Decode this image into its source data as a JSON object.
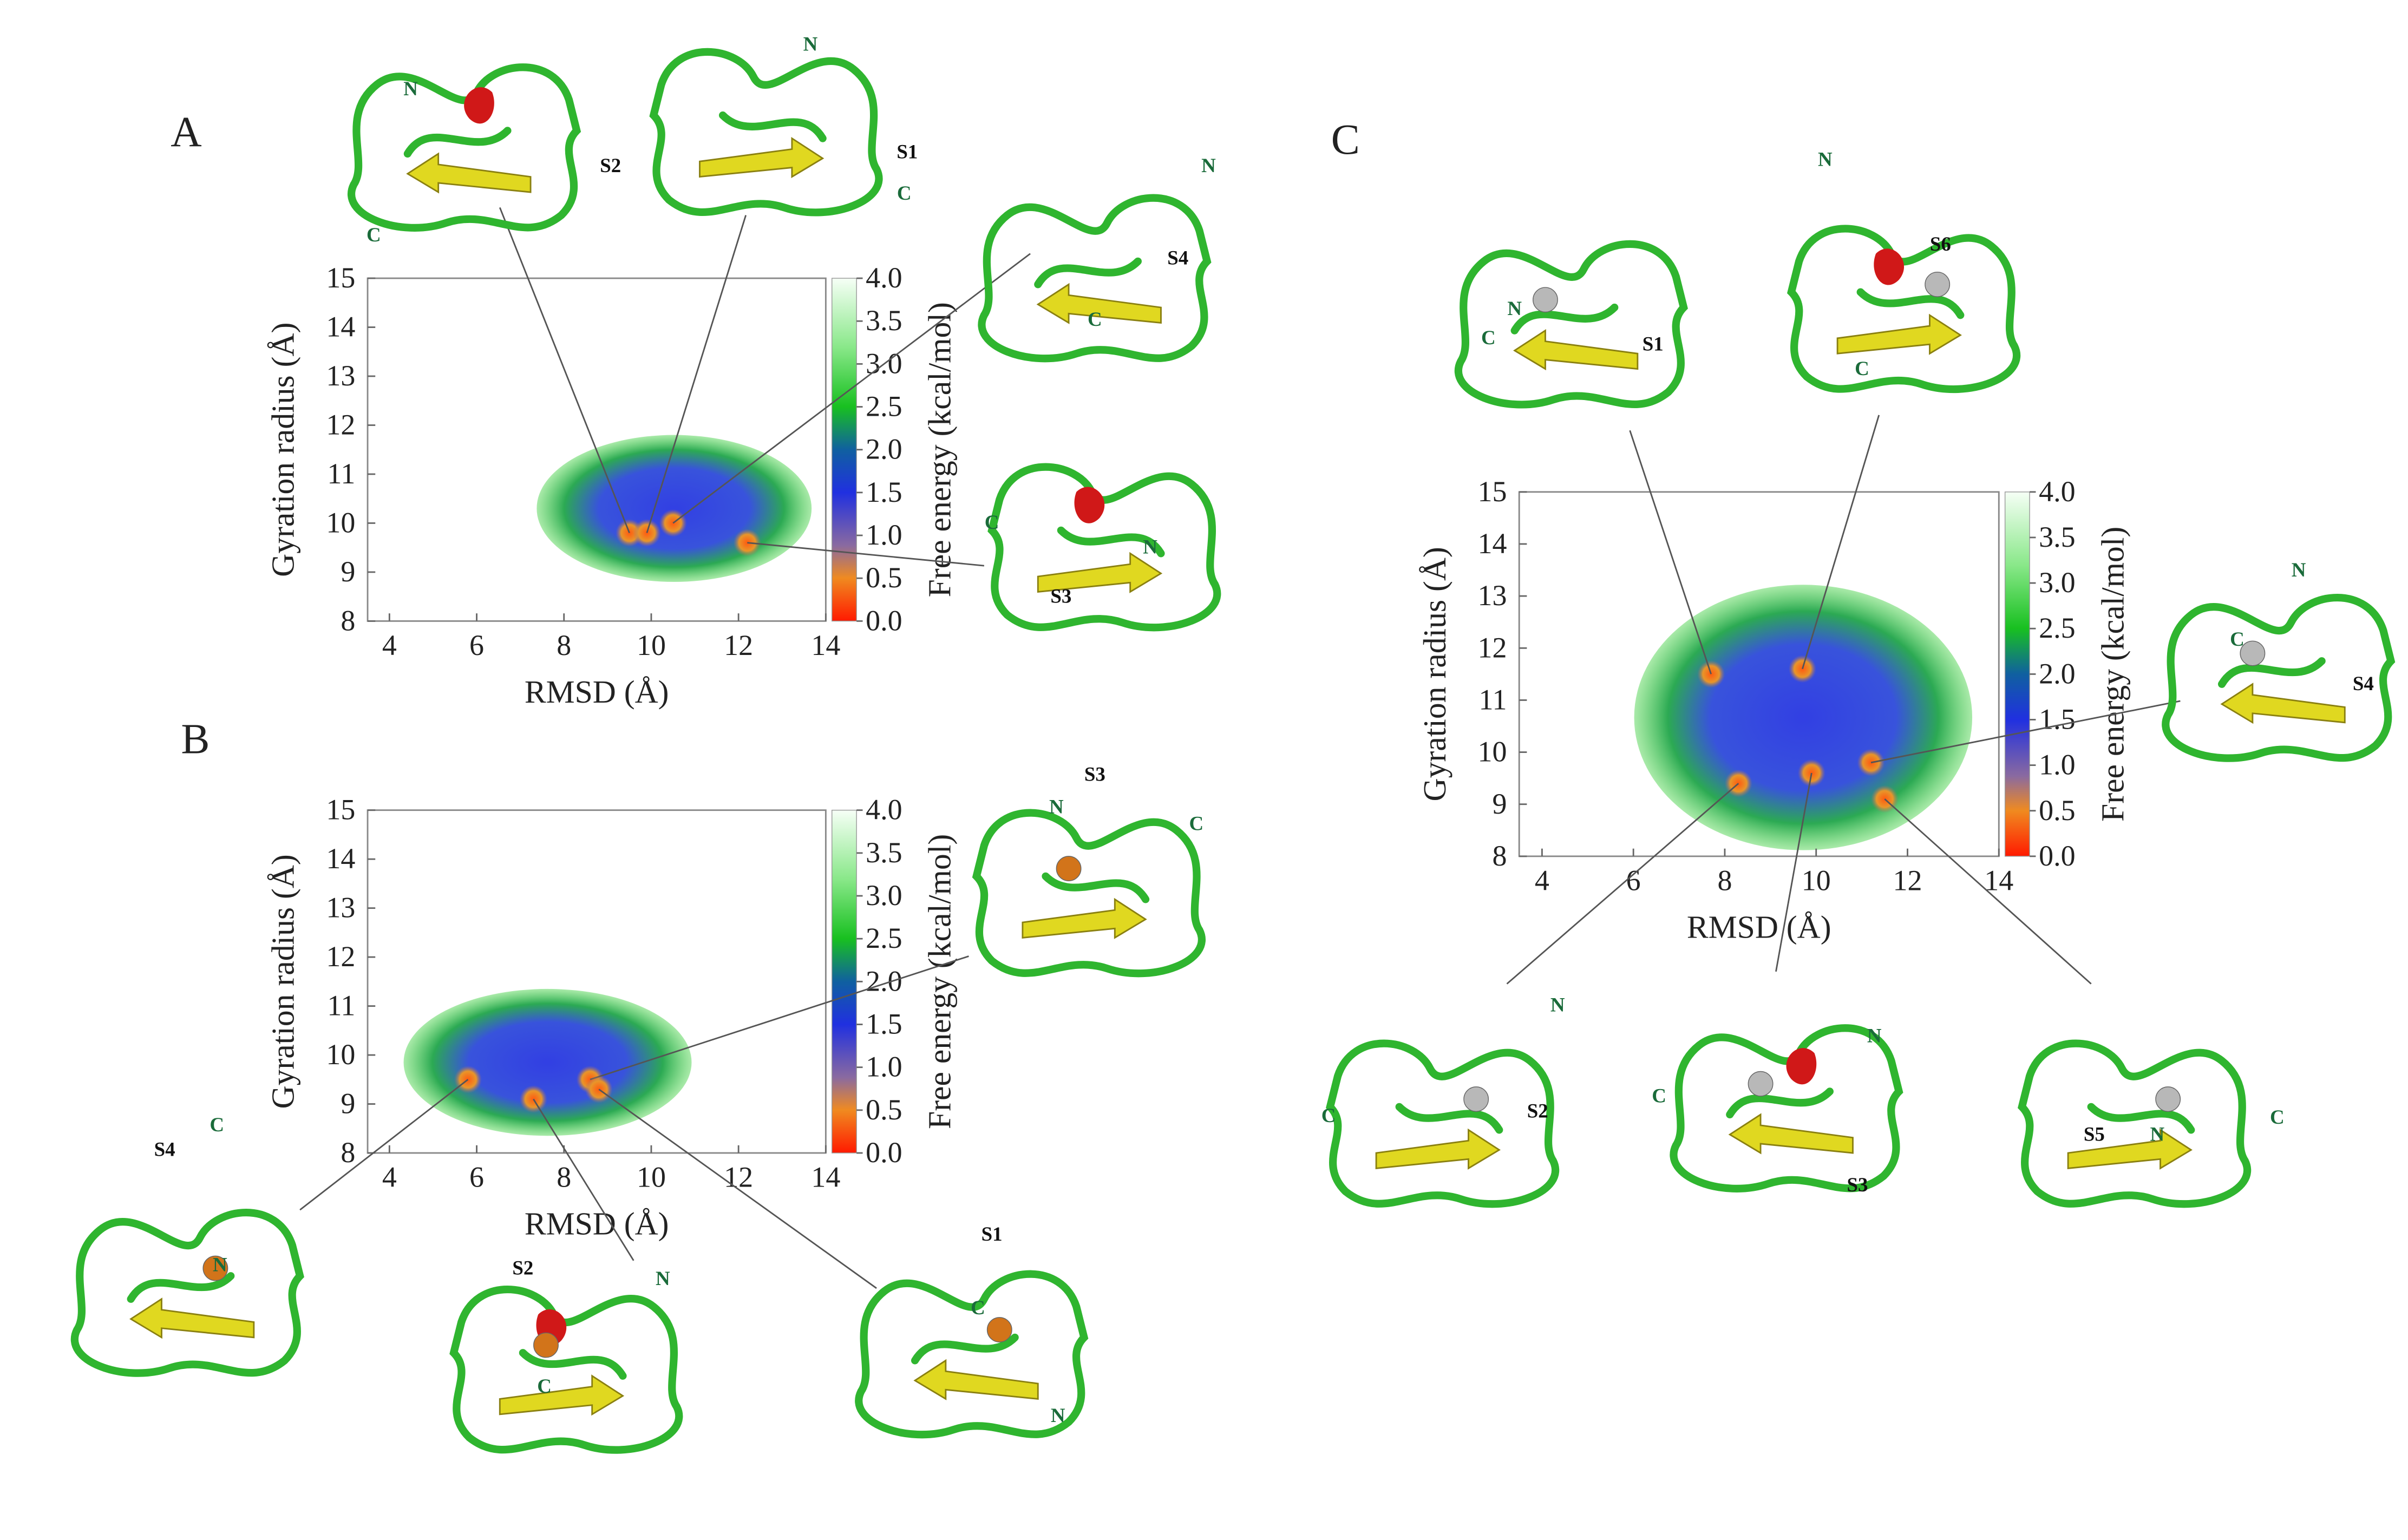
{
  "chart_data": [
    {
      "type": "free-energy-map",
      "panel": "A",
      "x_label": "RMSD  (Å)",
      "y_label": "Gyration radius (Å)",
      "xlim": [
        3.5,
        14
      ],
      "ylim": [
        8,
        15
      ],
      "xticks": [
        4,
        6,
        8,
        10,
        12,
        14
      ],
      "yticks": [
        8,
        9,
        10,
        11,
        12,
        13,
        14,
        15
      ],
      "colorbar_label": "Free energy (kcal/mol)",
      "clim": [
        0,
        4
      ],
      "cticks": [
        {
          "value": 0,
          "label": "0.0"
        },
        {
          "value": 0.5,
          "label": "0.5"
        },
        {
          "value": 1,
          "label": "1.0"
        },
        {
          "value": 1.5,
          "label": "1.5"
        },
        {
          "value": 2,
          "label": "2.0"
        },
        {
          "value": 2.5,
          "label": "2.5"
        },
        {
          "value": 3,
          "label": "3.0"
        },
        {
          "value": 3.5,
          "label": "3.5"
        },
        {
          "value": 4,
          "label": "4.0"
        }
      ],
      "states": [
        {
          "name": "S2",
          "x": 9.5,
          "y": 9.8,
          "n_label": "N",
          "c_label": "C"
        },
        {
          "name": "S1",
          "x": 9.9,
          "y": 9.8,
          "n_label": "N",
          "c_label": "C"
        },
        {
          "name": "S4",
          "x": 10.5,
          "y": 10.0,
          "n_label": "N",
          "c_label": "C"
        },
        {
          "name": "S3",
          "x": 12.2,
          "y": 9.6,
          "n_label": "N",
          "c_label": "C"
        }
      ]
    },
    {
      "type": "free-energy-map",
      "panel": "B",
      "x_label": "RMSD  (Å)",
      "y_label": "Gyration radius (Å)",
      "xlim": [
        3.5,
        14
      ],
      "ylim": [
        8,
        15
      ],
      "xticks": [
        4,
        6,
        8,
        10,
        12,
        14
      ],
      "yticks": [
        8,
        9,
        10,
        11,
        12,
        13,
        14,
        15
      ],
      "colorbar_label": "Free energy (kcal/mol)",
      "clim": [
        0,
        4
      ],
      "cticks": [
        {
          "value": 0,
          "label": "0.0"
        },
        {
          "value": 0.5,
          "label": "0.5"
        },
        {
          "value": 1,
          "label": "1.0"
        },
        {
          "value": 1.5,
          "label": "1.5"
        },
        {
          "value": 2,
          "label": "2.0"
        },
        {
          "value": 2.5,
          "label": "2.5"
        },
        {
          "value": 3,
          "label": "3.0"
        },
        {
          "value": 3.5,
          "label": "3.5"
        },
        {
          "value": 4,
          "label": "4.0"
        }
      ],
      "states": [
        {
          "name": "S3",
          "x": 8.6,
          "y": 9.5,
          "n_label": "N",
          "c_label": "C"
        },
        {
          "name": "S4",
          "x": 5.8,
          "y": 9.5,
          "n_label": "N",
          "c_label": "C"
        },
        {
          "name": "S2",
          "x": 7.3,
          "y": 9.1,
          "n_label": "N",
          "c_label": "C"
        },
        {
          "name": "S1",
          "x": 8.8,
          "y": 9.3,
          "n_label": "N",
          "c_label": "C"
        }
      ]
    },
    {
      "type": "free-energy-map",
      "panel": "C",
      "x_label": "RMSD  (Å)",
      "y_label": "Gyration radius (Å)",
      "xlim": [
        3.5,
        14
      ],
      "ylim": [
        8,
        15
      ],
      "xticks": [
        4,
        6,
        8,
        10,
        12,
        14
      ],
      "yticks": [
        8,
        9,
        10,
        11,
        12,
        13,
        14,
        15
      ],
      "colorbar_label": "Free energy (kcal/mol)",
      "clim": [
        0,
        4
      ],
      "cticks": [
        {
          "value": 0,
          "label": "0.0"
        },
        {
          "value": 0.5,
          "label": "0.5"
        },
        {
          "value": 1,
          "label": "1.0"
        },
        {
          "value": 1.5,
          "label": "1.5"
        },
        {
          "value": 2,
          "label": "2.0"
        },
        {
          "value": 2.5,
          "label": "2.5"
        },
        {
          "value": 3,
          "label": "3.0"
        },
        {
          "value": 3.5,
          "label": "3.5"
        },
        {
          "value": 4,
          "label": "4.0"
        }
      ],
      "states": [
        {
          "name": "S1",
          "x": 7.7,
          "y": 11.5,
          "n_label": "N",
          "c_label": "C"
        },
        {
          "name": "S6",
          "x": 9.7,
          "y": 11.6,
          "n_label": "N",
          "c_label": "C"
        },
        {
          "name": "S4",
          "x": 11.2,
          "y": 9.8,
          "n_label": "N",
          "c_label": "C"
        },
        {
          "name": "S2",
          "x": 8.3,
          "y": 9.4,
          "n_label": "N",
          "c_label": "C"
        },
        {
          "name": "S3",
          "x": 9.9,
          "y": 9.6,
          "n_label": "N",
          "c_label": "C"
        },
        {
          "name": "S5",
          "x": 11.5,
          "y": 9.1,
          "n_label": "N",
          "c_label": "C"
        }
      ]
    }
  ]
}
